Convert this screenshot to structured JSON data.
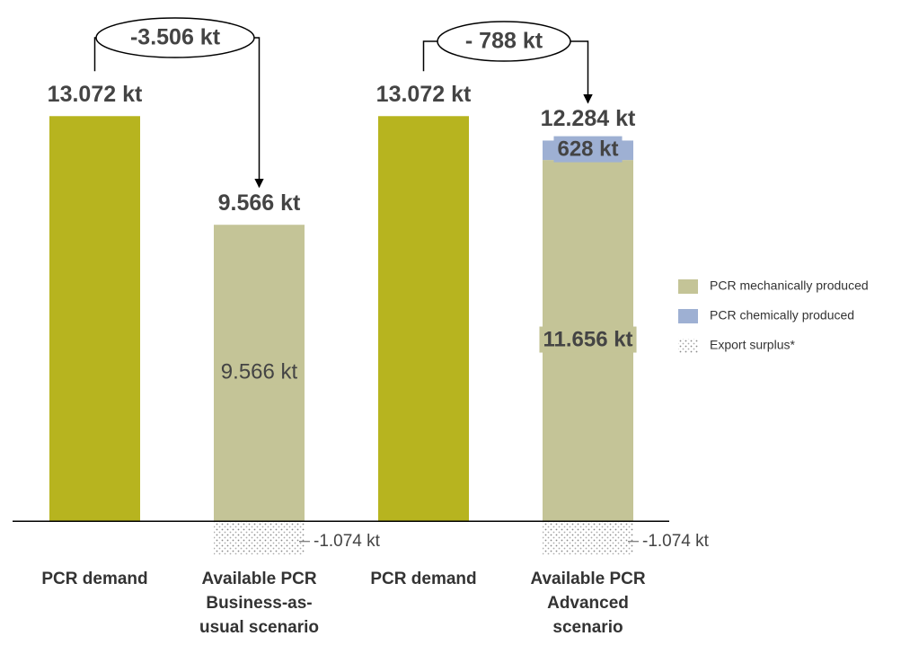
{
  "chart_data": {
    "type": "bar",
    "stacked": true,
    "categories": [
      "PCR demand",
      "Available PCR Business-as-usual scenario",
      "PCR demand",
      "Available PCR Advanced scenario"
    ],
    "series": [
      {
        "color": "#b7b41f",
        "values": [
          13072,
          null,
          13072,
          null
        ]
      },
      {
        "name": "PCR mechanically produced",
        "color": "#c4c497",
        "values": [
          null,
          9566,
          null,
          11656
        ],
        "value_labels": [
          null,
          "9.566 kt",
          null,
          "11.656 kt"
        ]
      },
      {
        "name": "PCR chemically produced",
        "color": "#9eb0d3",
        "values": [
          null,
          null,
          null,
          628
        ],
        "value_labels": [
          null,
          null,
          null,
          "628 kt"
        ]
      },
      {
        "name": "Export surplus*",
        "pattern": "dots",
        "values": [
          null,
          -1074,
          null,
          -1074
        ],
        "value_labels": [
          null,
          "-1.074 kt",
          null,
          "-1.074 kt"
        ]
      }
    ],
    "totals": [
      13072,
      9566,
      13072,
      12284
    ],
    "total_labels": [
      "13.072 kt",
      "9.566 kt",
      "13.072 kt",
      "12.284 kt"
    ],
    "differences": {
      "values": [
        -3506,
        -788
      ],
      "value_labels": [
        "-3.506 kt",
        "- 788 kt"
      ]
    },
    "ylim": [
      -1500,
      14500
    ],
    "legend": "right"
  }
}
